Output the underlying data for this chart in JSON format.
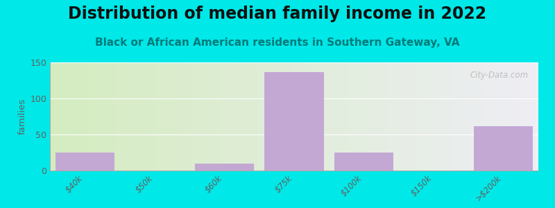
{
  "title": "Distribution of median family income in 2022",
  "subtitle": "Black or African American residents in Southern Gateway, VA",
  "categories": [
    "$40k",
    "$50k",
    "$60k",
    "$75k",
    "$100k",
    "$150k",
    ">$200k"
  ],
  "values": [
    25,
    0,
    10,
    137,
    25,
    0,
    62
  ],
  "bar_color": "#c4a8d4",
  "ylabel": "families",
  "ylim": [
    0,
    150
  ],
  "yticks": [
    0,
    50,
    100,
    150
  ],
  "background_color": "#00e8e8",
  "plot_bg_left": "#d4ecc0",
  "plot_bg_right": "#eeeef4",
  "grid_color": "#ffffff",
  "title_fontsize": 17,
  "subtitle_fontsize": 11,
  "subtitle_color": "#007a7a",
  "watermark": "City-Data.com",
  "tick_color": "#606060"
}
